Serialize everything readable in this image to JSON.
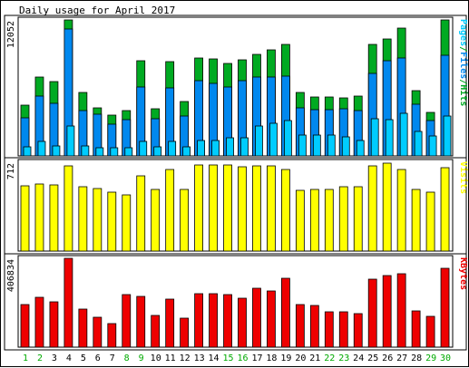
{
  "title": "Daily usage for April 2017",
  "colors": {
    "hits": "#00aa22",
    "files": "#0088ee",
    "pages": "#00ccff",
    "visits": "#ffff00",
    "kbytes": "#ee0000",
    "weekday_label": "#000000",
    "weekend_label": "#00aa00",
    "panel_bg": "#ffffff",
    "plot_bg": "#ffffff"
  },
  "chart_data": [
    {
      "type": "bar",
      "panel": "hits",
      "max_label": "12052",
      "side_labels": [
        {
          "text": "Pages",
          "color_key": "pages"
        },
        {
          "text": "/",
          "color_key": "hits"
        },
        {
          "text": "Files",
          "color_key": "files"
        },
        {
          "text": "/",
          "color_key": "hits"
        },
        {
          "text": "Hits",
          "color_key": "hits"
        }
      ],
      "categories": [
        "1",
        "2",
        "3",
        "4",
        "5",
        "6",
        "7",
        "8",
        "9",
        "10",
        "11",
        "12",
        "13",
        "14",
        "15",
        "16",
        "17",
        "18",
        "19",
        "20",
        "21",
        "22",
        "23",
        "24",
        "25",
        "26",
        "27",
        "28",
        "29",
        "30"
      ],
      "ylim": [
        0,
        12052
      ],
      "series": [
        {
          "name": "Hits",
          "color_key": "hits",
          "values": [
            4460,
            6910,
            6550,
            11950,
            5550,
            4230,
            3620,
            4020,
            8380,
            4160,
            8330,
            4760,
            8650,
            8550,
            8110,
            8440,
            8900,
            9370,
            9800,
            5620,
            5190,
            5160,
            5140,
            5260,
            9800,
            10260,
            11260,
            5750,
            3860,
            12000
          ]
        },
        {
          "name": "Files",
          "color_key": "files",
          "values": [
            3360,
            5250,
            4590,
            11210,
            4030,
            3640,
            2790,
            3160,
            6060,
            3280,
            6000,
            3550,
            6630,
            6360,
            6100,
            6650,
            6980,
            6980,
            7000,
            4230,
            4090,
            4100,
            4190,
            4020,
            7260,
            8380,
            8610,
            4520,
            3100,
            8860
          ]
        },
        {
          "name": "Pages",
          "color_key": "pages",
          "values": [
            810,
            1260,
            890,
            2620,
            900,
            730,
            700,
            690,
            1300,
            810,
            1260,
            810,
            1360,
            1360,
            1620,
            1610,
            2600,
            2890,
            3110,
            1850,
            1850,
            1850,
            1650,
            1360,
            3240,
            3230,
            3720,
            2180,
            1760,
            3510
          ]
        }
      ]
    },
    {
      "type": "bar",
      "panel": "visits",
      "max_label": "712",
      "side_labels": [
        {
          "text": "Visits",
          "color_key": "visits"
        }
      ],
      "categories": [
        "1",
        "2",
        "3",
        "4",
        "5",
        "6",
        "7",
        "8",
        "9",
        "10",
        "11",
        "12",
        "13",
        "14",
        "15",
        "16",
        "17",
        "18",
        "19",
        "20",
        "21",
        "22",
        "23",
        "24",
        "25",
        "26",
        "27",
        "28",
        "29",
        "30"
      ],
      "ylim": [
        0,
        712
      ],
      "series": [
        {
          "name": "Visits",
          "color_key": "visits",
          "values": [
            520,
            530,
            525,
            675,
            510,
            495,
            470,
            445,
            600,
            490,
            645,
            490,
            680,
            680,
            680,
            670,
            675,
            675,
            650,
            485,
            490,
            490,
            510,
            510,
            675,
            700,
            645,
            490,
            470,
            665
          ]
        }
      ]
    },
    {
      "type": "bar",
      "panel": "kbytes",
      "max_label": "406834",
      "side_labels": [
        {
          "text": "KBytes",
          "color_key": "kbytes"
        }
      ],
      "categories": [
        "1",
        "2",
        "3",
        "4",
        "5",
        "6",
        "7",
        "8",
        "9",
        "10",
        "11",
        "12",
        "13",
        "14",
        "15",
        "16",
        "17",
        "18",
        "19",
        "20",
        "21",
        "22",
        "23",
        "24",
        "25",
        "26",
        "27",
        "28",
        "29",
        "30"
      ],
      "ylim": [
        0,
        406834
      ],
      "series": [
        {
          "name": "KBytes",
          "color_key": "kbytes",
          "values": [
            195000,
            224000,
            206000,
            403000,
            171000,
            137000,
            107000,
            238000,
            231000,
            143000,
            217000,
            133000,
            243000,
            244000,
            238000,
            221000,
            266000,
            256000,
            313000,
            192000,
            188000,
            161000,
            161000,
            153000,
            308000,
            323000,
            334000,
            166000,
            138000,
            356000
          ]
        }
      ]
    }
  ],
  "days": [
    {
      "label": "1",
      "weekend": true
    },
    {
      "label": "2",
      "weekend": true
    },
    {
      "label": "3",
      "weekend": false
    },
    {
      "label": "4",
      "weekend": false
    },
    {
      "label": "5",
      "weekend": false
    },
    {
      "label": "6",
      "weekend": false
    },
    {
      "label": "7",
      "weekend": false
    },
    {
      "label": "8",
      "weekend": true
    },
    {
      "label": "9",
      "weekend": true
    },
    {
      "label": "10",
      "weekend": false
    },
    {
      "label": "11",
      "weekend": false
    },
    {
      "label": "12",
      "weekend": false
    },
    {
      "label": "13",
      "weekend": false
    },
    {
      "label": "14",
      "weekend": false
    },
    {
      "label": "15",
      "weekend": true
    },
    {
      "label": "16",
      "weekend": true
    },
    {
      "label": "17",
      "weekend": false
    },
    {
      "label": "18",
      "weekend": false
    },
    {
      "label": "19",
      "weekend": false
    },
    {
      "label": "20",
      "weekend": false
    },
    {
      "label": "21",
      "weekend": false
    },
    {
      "label": "22",
      "weekend": true
    },
    {
      "label": "23",
      "weekend": true
    },
    {
      "label": "24",
      "weekend": false
    },
    {
      "label": "25",
      "weekend": false
    },
    {
      "label": "26",
      "weekend": false
    },
    {
      "label": "27",
      "weekend": false
    },
    {
      "label": "28",
      "weekend": false
    },
    {
      "label": "29",
      "weekend": true
    },
    {
      "label": "30",
      "weekend": true
    }
  ]
}
